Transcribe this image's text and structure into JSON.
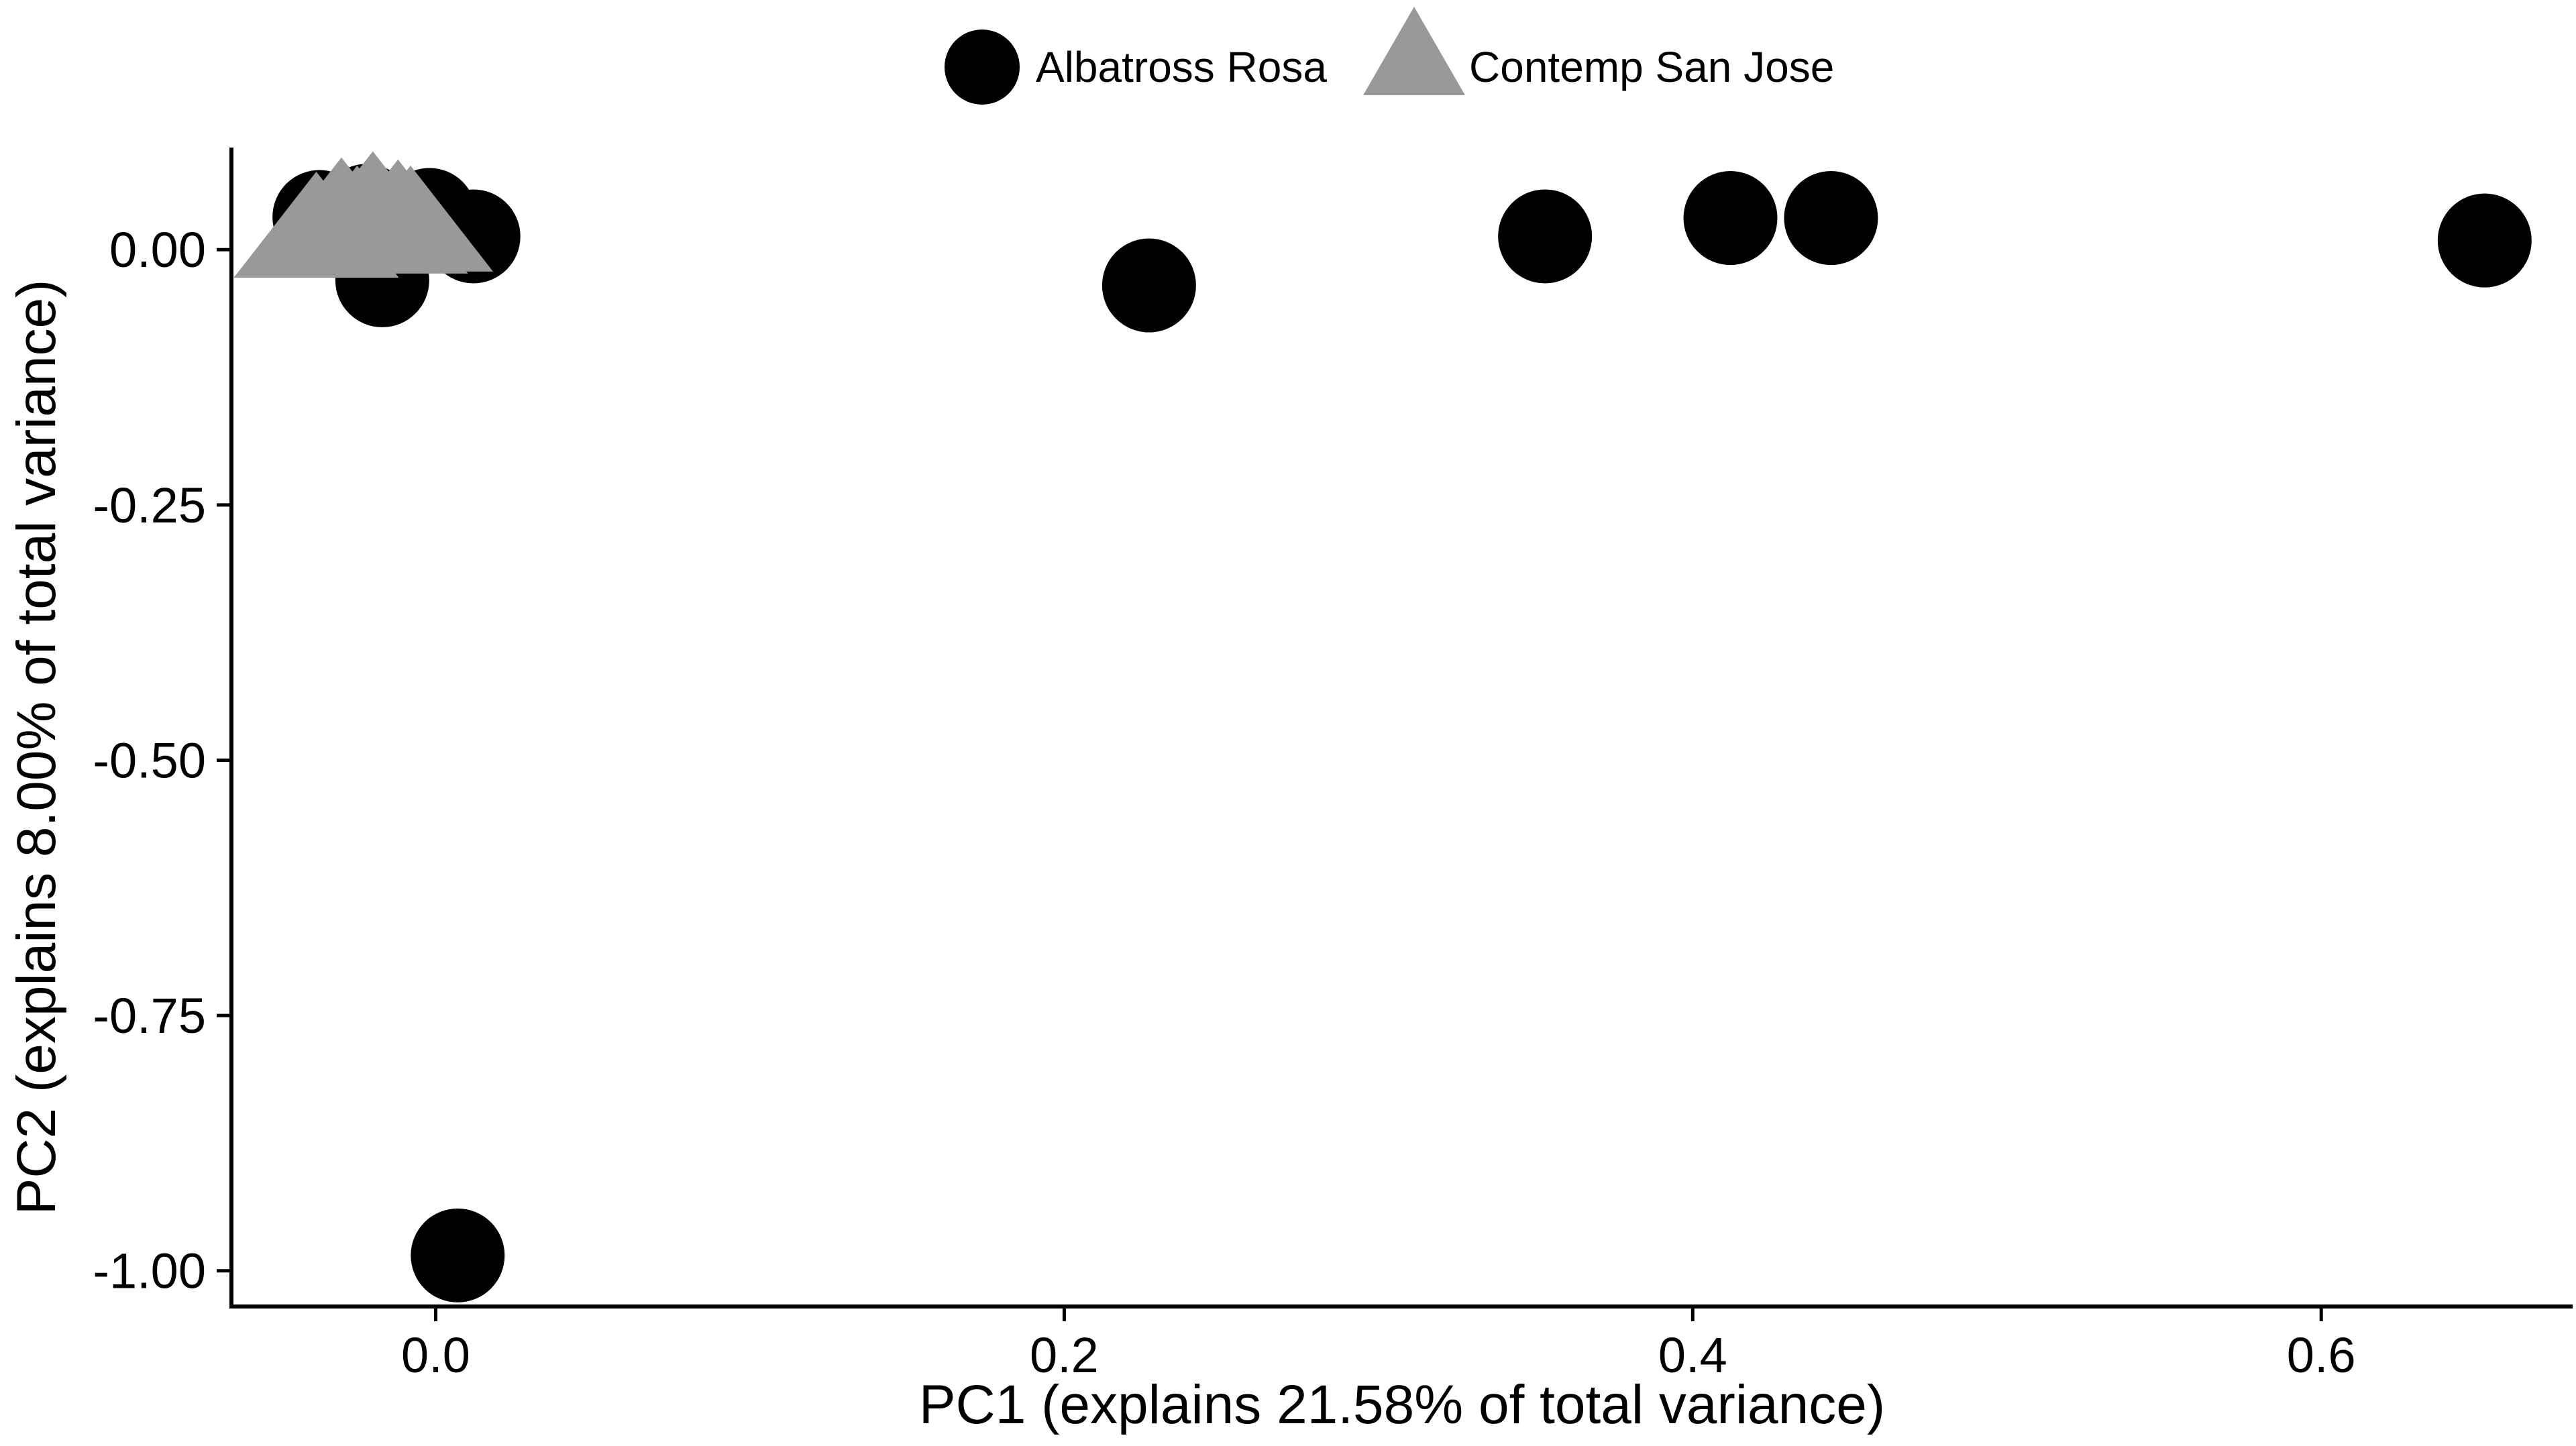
{
  "colors": {
    "background": "#ffffff",
    "axis": "#000000",
    "albatross": "#000000",
    "contemp": "#999999"
  },
  "legend": {
    "placement": "top-center",
    "items": [
      {
        "label": "Albatross Rosa",
        "shape": "circle",
        "color": "#000000"
      },
      {
        "label": "Contemp San Jose",
        "shape": "triangle",
        "color": "#999999"
      }
    ]
  },
  "chart_data": {
    "type": "scatter",
    "title": "",
    "xlabel": "PC1 (explains 21.58% of total variance)",
    "ylabel": "PC2 (explains 8.00% of total variance)",
    "xlim": [
      -0.065,
      0.68
    ],
    "ylim": [
      -1.035,
      0.1
    ],
    "grid": false,
    "x_ticks": [
      {
        "value": 0.0,
        "label": "0.0"
      },
      {
        "value": 0.2,
        "label": "0.2"
      },
      {
        "value": 0.4,
        "label": "0.4"
      },
      {
        "value": 0.6,
        "label": "0.6"
      }
    ],
    "y_ticks": [
      {
        "value": 0.0,
        "label": "0.00"
      },
      {
        "value": -0.25,
        "label": "-0.25"
      },
      {
        "value": -0.5,
        "label": "-0.50"
      },
      {
        "value": -0.75,
        "label": "-0.75"
      },
      {
        "value": -1.0,
        "label": "-1.00"
      }
    ],
    "series": [
      {
        "name": "Albatross Rosa",
        "marker": "circle",
        "color": "#000000",
        "points": [
          {
            "x": -0.037,
            "y": 0.032
          },
          {
            "x": -0.022,
            "y": 0.038
          },
          {
            "x": -0.017,
            "y": -0.03
          },
          {
            "x": -0.002,
            "y": 0.034
          },
          {
            "x": 0.012,
            "y": 0.013
          },
          {
            "x": 0.007,
            "y": -0.985
          },
          {
            "x": 0.227,
            "y": -0.035
          },
          {
            "x": 0.353,
            "y": 0.013
          },
          {
            "x": 0.412,
            "y": 0.031
          },
          {
            "x": 0.444,
            "y": 0.031
          },
          {
            "x": 0.652,
            "y": 0.009
          }
        ]
      },
      {
        "name": "Contemp San Jose",
        "marker": "triangle",
        "color": "#999999",
        "points": [
          {
            "x": -0.038,
            "y": 0.012
          },
          {
            "x": -0.03,
            "y": 0.026
          },
          {
            "x": -0.025,
            "y": 0.018
          },
          {
            "x": -0.02,
            "y": 0.032
          },
          {
            "x": -0.016,
            "y": 0.016
          },
          {
            "x": -0.012,
            "y": 0.024
          },
          {
            "x": -0.008,
            "y": 0.018
          }
        ]
      }
    ]
  }
}
